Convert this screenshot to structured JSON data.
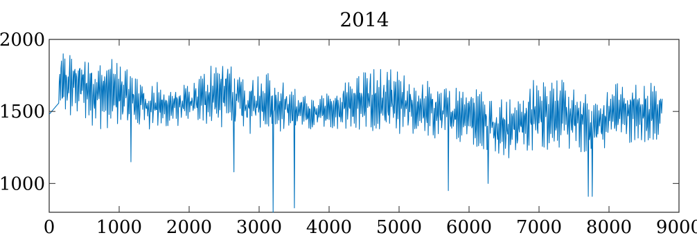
{
  "chart_data": {
    "type": "line",
    "title": "2014",
    "xlabel": "",
    "ylabel": "",
    "xlim": [
      0,
      9000
    ],
    "ylim": [
      800,
      2000
    ],
    "x_ticks": [
      "0",
      "1000",
      "2000",
      "3000",
      "4000",
      "5000",
      "6000",
      "7000",
      "8000",
      "9000"
    ],
    "y_ticks": [
      "1000",
      "1500",
      "2000"
    ],
    "grid": false,
    "series": [
      {
        "color": "#0072bd",
        "x_start": 0,
        "x_end": 8760,
        "envelope": [
          {
            "x": 0,
            "low": 1480,
            "high": 1500
          },
          {
            "x": 150,
            "low": 1400,
            "high": 1950
          },
          {
            "x": 400,
            "low": 1450,
            "high": 1940
          },
          {
            "x": 700,
            "low": 1350,
            "high": 1920
          },
          {
            "x": 1000,
            "low": 1380,
            "high": 1860
          },
          {
            "x": 1300,
            "low": 1320,
            "high": 1800
          },
          {
            "x": 1600,
            "low": 1360,
            "high": 1700
          },
          {
            "x": 2000,
            "low": 1400,
            "high": 1700
          },
          {
            "x": 2300,
            "low": 1380,
            "high": 1850
          },
          {
            "x": 2600,
            "low": 1350,
            "high": 1900
          },
          {
            "x": 2800,
            "low": 1300,
            "high": 1760
          },
          {
            "x": 3100,
            "low": 1380,
            "high": 1800
          },
          {
            "x": 3400,
            "low": 1320,
            "high": 1740
          },
          {
            "x": 3700,
            "low": 1360,
            "high": 1600
          },
          {
            "x": 4000,
            "low": 1380,
            "high": 1640
          },
          {
            "x": 4300,
            "low": 1350,
            "high": 1760
          },
          {
            "x": 4600,
            "low": 1300,
            "high": 1840
          },
          {
            "x": 5000,
            "low": 1280,
            "high": 1800
          },
          {
            "x": 5300,
            "low": 1260,
            "high": 1760
          },
          {
            "x": 5700,
            "low": 1280,
            "high": 1700
          },
          {
            "x": 6000,
            "low": 1260,
            "high": 1720
          },
          {
            "x": 6300,
            "low": 1200,
            "high": 1640
          },
          {
            "x": 6600,
            "low": 1150,
            "high": 1620
          },
          {
            "x": 7000,
            "low": 1180,
            "high": 1780
          },
          {
            "x": 7200,
            "low": 1230,
            "high": 1780
          },
          {
            "x": 7500,
            "low": 1200,
            "high": 1680
          },
          {
            "x": 7800,
            "low": 1180,
            "high": 1620
          },
          {
            "x": 8100,
            "low": 1280,
            "high": 1720
          },
          {
            "x": 8400,
            "low": 1260,
            "high": 1720
          },
          {
            "x": 8760,
            "low": 1280,
            "high": 1720
          }
        ],
        "spikes": [
          {
            "x": 3200,
            "value": 800
          },
          {
            "x": 3500,
            "value": 830
          },
          {
            "x": 2640,
            "value": 1080
          },
          {
            "x": 1170,
            "value": 1150
          },
          {
            "x": 5700,
            "value": 950
          },
          {
            "x": 6270,
            "value": 1000
          },
          {
            "x": 7700,
            "value": 910
          },
          {
            "x": 7760,
            "value": 910
          }
        ]
      }
    ]
  }
}
